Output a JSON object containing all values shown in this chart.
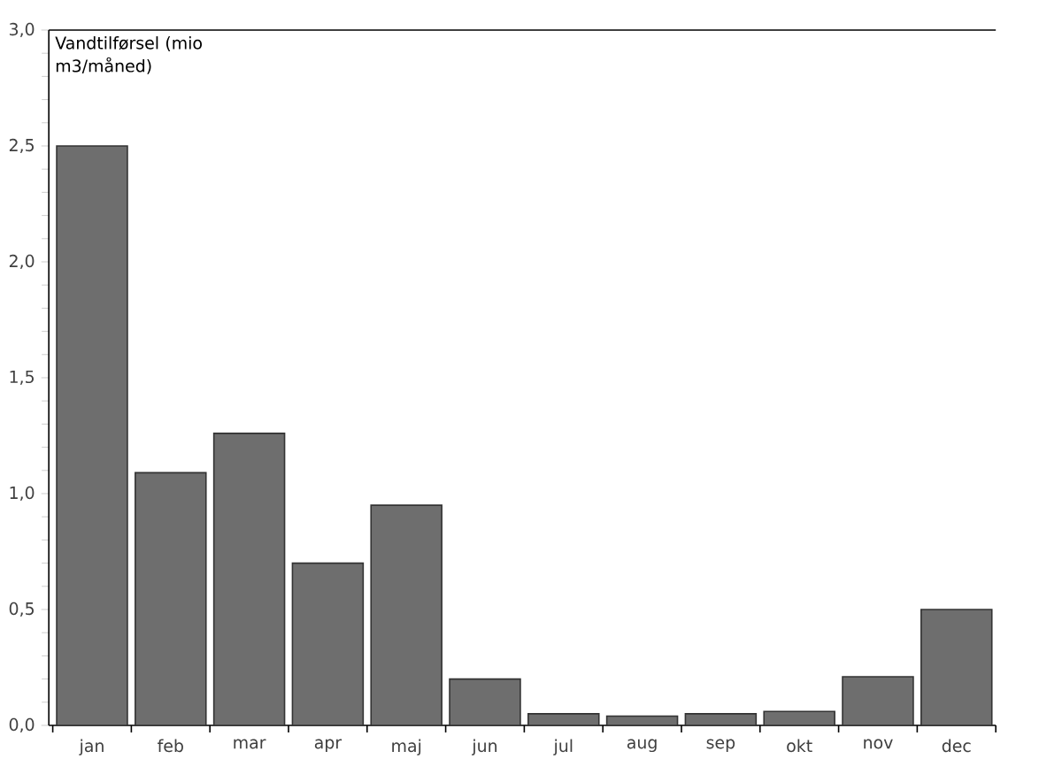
{
  "chart_data": {
    "type": "bar",
    "ylabel": "Vandtilførsel (mio m3/måned)",
    "categories": [
      "jan",
      "feb",
      "mar",
      "apr",
      "maj",
      "jun",
      "jul",
      "aug",
      "sep",
      "okt",
      "nov",
      "dec"
    ],
    "values": [
      2.5,
      1.09,
      1.26,
      0.7,
      0.95,
      0.2,
      0.05,
      0.04,
      0.05,
      0.06,
      0.21,
      0.5
    ],
    "color": "#6e6e6e",
    "ylim": [
      0,
      3
    ],
    "yticks": [
      {
        "value": 0,
        "label": "0,0"
      },
      {
        "value": 0.5,
        "label": "0,5"
      },
      {
        "value": 1,
        "label": "1,0"
      },
      {
        "value": 1.5,
        "label": "1,5"
      },
      {
        "value": 2,
        "label": "2,0"
      },
      {
        "value": 2.5,
        "label": "2,5"
      },
      {
        "value": 3,
        "label": "3,0"
      }
    ],
    "grid": false
  }
}
